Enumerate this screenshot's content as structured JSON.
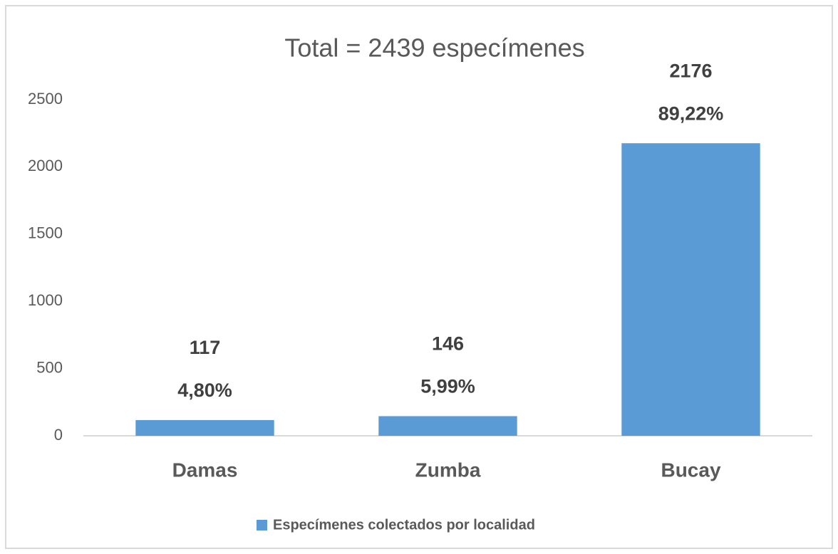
{
  "chart_data": {
    "type": "bar",
    "title": "Total = 2439 especímenes",
    "categories": [
      "Damas",
      "Zumba",
      "Bucay"
    ],
    "series": [
      {
        "name": "Especímenes colectados por localidad",
        "color": "#5b9bd5",
        "values": [
          117,
          146,
          2176
        ],
        "percent_labels": [
          "4,80%",
          "5,99%",
          "89,22%"
        ]
      }
    ],
    "ylim": [
      0,
      2500
    ],
    "yticks": [
      0,
      500,
      1000,
      1500,
      2000,
      2500
    ],
    "grid": false,
    "legend": "bottom"
  }
}
